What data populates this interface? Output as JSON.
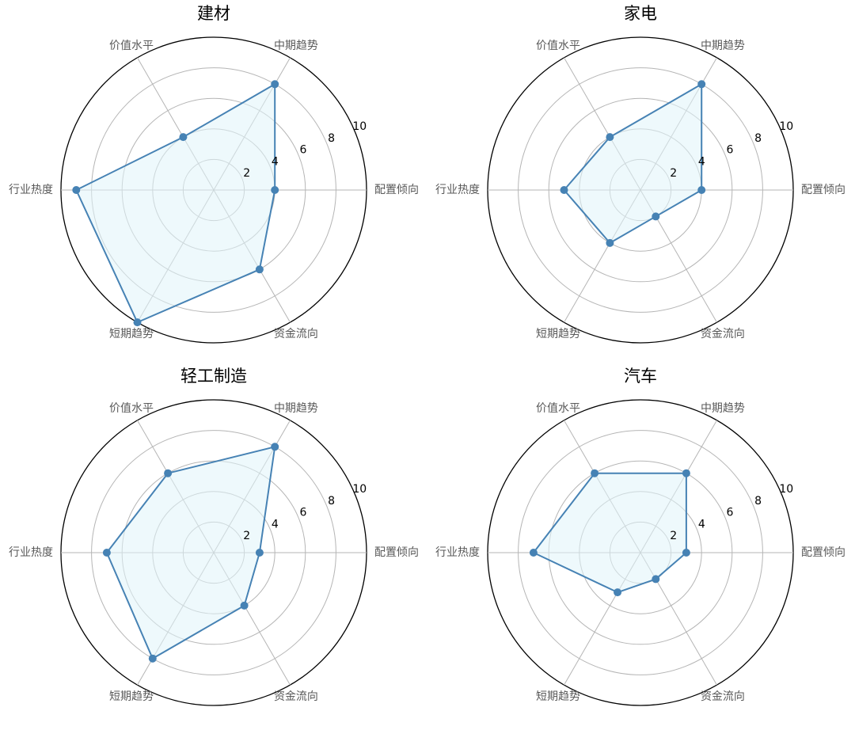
{
  "colors": {
    "series_line": "#4682b4",
    "series_fill": "#e0f4fa",
    "grid": "#b5b5b5",
    "outer_ring": "#000000",
    "axis_text": "#595959"
  },
  "chart_data": [
    {
      "type": "radar",
      "title": "建材",
      "axes": [
        "配置倾向",
        "中期趋势",
        "价值水平",
        "行业热度",
        "短期趋势",
        "资金流向"
      ],
      "rlim": [
        0,
        10
      ],
      "rticks": [
        "2",
        "4",
        "6",
        "8",
        "10"
      ],
      "series": [
        {
          "values": [
            4,
            8,
            4,
            9,
            10,
            6
          ]
        }
      ],
      "grid": true
    },
    {
      "type": "radar",
      "title": "家电",
      "axes": [
        "配置倾向",
        "中期趋势",
        "价值水平",
        "行业热度",
        "短期趋势",
        "资金流向"
      ],
      "rlim": [
        0,
        10
      ],
      "rticks": [
        "2",
        "4",
        "6",
        "8",
        "10"
      ],
      "series": [
        {
          "values": [
            4,
            8,
            4,
            5,
            4,
            2
          ]
        }
      ],
      "grid": true
    },
    {
      "type": "radar",
      "title": "轻工制造",
      "axes": [
        "配置倾向",
        "中期趋势",
        "价值水平",
        "行业热度",
        "短期趋势",
        "资金流向"
      ],
      "rlim": [
        0,
        10
      ],
      "rticks": [
        "2",
        "4",
        "6",
        "8",
        "10"
      ],
      "series": [
        {
          "values": [
            3,
            8,
            6,
            7,
            8,
            4
          ]
        }
      ],
      "grid": true
    },
    {
      "type": "radar",
      "title": "汽车",
      "axes": [
        "配置倾向",
        "中期趋势",
        "价值水平",
        "行业热度",
        "短期趋势",
        "资金流向"
      ],
      "rlim": [
        0,
        10
      ],
      "rticks": [
        "2",
        "4",
        "6",
        "8",
        "10"
      ],
      "series": [
        {
          "values": [
            3,
            6,
            6,
            7,
            3,
            2
          ]
        }
      ],
      "grid": true
    }
  ]
}
